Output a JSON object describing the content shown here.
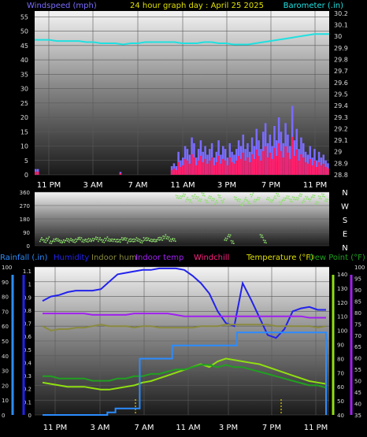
{
  "header": {
    "left_label": "Windspeed (mph)",
    "title": "24 hour graph day : April 25 2025",
    "right_label": "Barometer (.in)"
  },
  "colors": {
    "grid": "#5a5a5a",
    "wind": "#7a6cff",
    "gust": "#ff1f6a",
    "baro": "#20e0e0",
    "dir": "#8ee06e",
    "rain": "#2b8cff",
    "hum": "#2222ee",
    "indoor_hum": "#8a8a40",
    "indoor_temp": "#a020f0",
    "windchill": "#ff2080",
    "temp": "#90e010",
    "dew": "#20a020",
    "title": "#e0e000",
    "yellow_tick": "#e0d000"
  },
  "x_labels": [
    "11 PM",
    "3 AM",
    "7 AM",
    "11 AM",
    "3 PM",
    "7 PM",
    "11 PM"
  ],
  "panel1": {
    "left_ticks": [
      "55",
      "50",
      "45",
      "40",
      "35",
      "30",
      "25",
      "20",
      "15",
      "10",
      "5",
      "0"
    ],
    "right_ticks": [
      "30.2",
      "30.1",
      "30",
      "29.9",
      "29.8",
      "29.7",
      "29.6",
      "29.5",
      "29.4",
      "29.3",
      "29.2",
      "29.1",
      "29",
      "28.9",
      "28.8"
    ]
  },
  "panel2": {
    "left_ticks": [
      "360",
      "270",
      "180",
      "90",
      "0"
    ],
    "compass": [
      "N",
      "W",
      "S",
      "E",
      "N"
    ]
  },
  "panel3": {
    "legend": {
      "rain": "Rainfall (.in)",
      "hum": "Humidity",
      "indoor_hum": "Indoor hum",
      "indoor_temp": "Indoor temp",
      "windchill": "Windchill",
      "temp": "Temperature (°F)",
      "dew": "Dew Point (°F)"
    },
    "hum_ticks": [
      "100",
      "90",
      "80",
      "70",
      "60",
      "50",
      "40",
      "30",
      "20",
      "10",
      "0"
    ],
    "rain_ticks": [
      "1.1",
      "1",
      "0.9",
      "0.8",
      "0.7",
      "0.6",
      "0.5",
      "0.4",
      "0.3",
      "0.2",
      "0.1",
      "0"
    ],
    "temp_ticks": [
      "140",
      "130",
      "120",
      "110",
      "100",
      "90",
      "80",
      "70",
      "60",
      "50",
      "40"
    ],
    "dew_ticks": [
      "100",
      "95",
      "90",
      "85",
      "80",
      "75",
      "70",
      "65",
      "60",
      "55",
      "50",
      "45",
      "40",
      "35"
    ]
  },
  "chart_data": [
    {
      "type": "area",
      "x_label_hours": [
        "11 PM",
        "3 AM",
        "7 AM",
        "11 AM",
        "3 PM",
        "7 PM",
        "11 PM"
      ],
      "series": [
        {
          "name": "Windspeed (mph)",
          "axis": "left",
          "values": [
            2,
            2,
            0,
            0,
            0,
            0,
            0,
            0,
            0,
            0,
            0,
            0,
            0,
            0,
            0,
            0,
            0,
            0,
            0,
            0,
            0,
            0,
            0,
            0,
            0,
            0,
            0,
            0,
            0,
            0,
            0,
            0,
            0,
            0,
            0,
            0,
            0,
            0,
            1,
            0,
            0,
            0,
            0,
            0,
            0,
            0,
            0,
            0,
            0,
            0,
            0,
            0,
            0,
            0,
            0,
            0,
            0,
            0,
            0,
            0,
            0,
            3,
            4,
            3,
            8,
            5,
            6,
            10,
            9,
            7,
            13,
            11,
            6,
            9,
            12,
            8,
            10,
            7,
            9,
            11,
            6,
            8,
            12,
            7,
            10,
            9,
            6,
            11,
            8,
            7,
            9,
            12,
            10,
            14,
            9,
            11,
            8,
            13,
            10,
            16,
            12,
            9,
            15,
            18,
            11,
            14,
            10,
            17,
            12,
            20,
            15,
            11,
            18,
            14,
            10,
            24,
            12,
            16,
            9,
            13,
            11,
            8,
            7,
            10,
            6,
            9,
            5,
            8,
            6,
            7,
            5,
            4
          ]
        },
        {
          "name": "Barometer (.in)",
          "axis": "right",
          "values": [
            29.97,
            29.97,
            29.97,
            29.96,
            29.96,
            29.96,
            29.96,
            29.95,
            29.95,
            29.94,
            29.94,
            29.94,
            29.93,
            29.94,
            29.94,
            29.95,
            29.95,
            29.95,
            29.95,
            29.95,
            29.94,
            29.94,
            29.94,
            29.95,
            29.95,
            29.94,
            29.94,
            29.93,
            29.93,
            29.93,
            29.94,
            29.95,
            29.96,
            29.97,
            29.98,
            29.99,
            30.0,
            30.01,
            30.02,
            30.02,
            30.02
          ]
        }
      ],
      "ylim_left": [
        0,
        57
      ],
      "ylim_right": [
        28.8,
        30.22
      ]
    },
    {
      "type": "scatter",
      "series": [
        {
          "name": "Wind direction (deg)",
          "values": [
            40,
            30,
            45,
            20,
            40,
            35,
            30,
            25,
            40,
            35,
            30,
            40,
            45,
            35,
            30,
            40,
            35,
            50,
            40,
            30,
            45,
            35,
            40,
            30,
            35,
            40,
            45,
            30,
            35,
            40,
            35,
            30,
            40,
            45,
            30,
            35,
            40,
            45,
            60,
            50,
            40,
            35,
            330,
            320,
            340,
            310,
            300,
            330,
            320,
            310,
            340,
            300,
            320,
            310,
            290,
            330,
            300,
            40,
            70,
            20,
            320,
            300,
            280,
            310,
            290,
            340,
            300,
            320,
            60,
            30,
            310,
            300,
            320,
            340,
            290,
            310,
            330,
            300,
            320,
            310,
            340,
            300,
            320,
            310,
            330,
            290,
            320,
            340,
            300
          ]
        }
      ],
      "ylim": [
        0,
        360
      ]
    },
    {
      "type": "line",
      "series": [
        {
          "name": "Humidity",
          "axis": "humidity",
          "values": [
            77,
            80,
            81,
            83,
            84,
            84,
            84,
            85,
            90,
            95,
            96,
            97,
            98,
            98,
            99,
            99,
            99,
            98,
            94,
            89,
            82,
            70,
            62,
            60,
            89,
            78,
            66,
            54,
            52,
            58,
            70,
            72,
            73,
            71,
            71
          ]
        },
        {
          "name": "Indoor hum",
          "axis": "humidity",
          "values": [
            60,
            57,
            58,
            58,
            59,
            59,
            60,
            61,
            60,
            60,
            60,
            59,
            60,
            60,
            59,
            59,
            59,
            59,
            59,
            60,
            60,
            60,
            61,
            61,
            61,
            61,
            61,
            61,
            60,
            60,
            60,
            60,
            60,
            59,
            60
          ]
        },
        {
          "name": "Indoor temp",
          "axis": "temperature",
          "values": [
            112,
            112,
            112,
            112,
            112,
            112,
            111,
            111,
            111,
            111,
            111,
            112,
            112,
            112,
            112,
            112,
            111,
            110,
            110,
            110,
            110,
            110,
            110,
            110,
            110,
            110,
            110,
            110,
            110,
            110,
            110,
            110,
            109,
            109,
            109
          ]
        },
        {
          "name": "Temperature (°F)",
          "axis": "temperature",
          "values": [
            63,
            62,
            61,
            60,
            60,
            60,
            59,
            58,
            58,
            59,
            60,
            61,
            63,
            64,
            66,
            68,
            70,
            72,
            74,
            76,
            74,
            78,
            80,
            79,
            78,
            77,
            76,
            74,
            72,
            70,
            68,
            66,
            64,
            63,
            62
          ]
        },
        {
          "name": "Dew Point (°F)",
          "axis": "dewpoint",
          "values": [
            52,
            52,
            51,
            51,
            51,
            51,
            50,
            50,
            50,
            51,
            51,
            52,
            52,
            53,
            53,
            54,
            55,
            55,
            56,
            57,
            57,
            56,
            57,
            56,
            56,
            55,
            54,
            53,
            52,
            51,
            50,
            49,
            48,
            48,
            47
          ]
        },
        {
          "name": "Rainfall (.in)",
          "axis": "rain",
          "values": [
            0,
            0,
            0,
            0,
            0,
            0,
            0,
            0,
            0.02,
            0.05,
            0.05,
            0.05,
            0.43,
            0.43,
            0.43,
            0.43,
            0.53,
            0.53,
            0.53,
            0.53,
            0.53,
            0.53,
            0.53,
            0.53,
            0.63,
            0.63,
            0.63,
            0.63,
            0.63,
            0.63,
            0.63,
            0.63,
            0.63,
            0.63,
            0.63
          ]
        }
      ],
      "axes": {
        "humidity": [
          0,
          100
        ],
        "rain": [
          0,
          1.13
        ],
        "temperature": [
          40,
          145
        ],
        "dewpoint": [
          35,
          100
        ]
      }
    }
  ]
}
